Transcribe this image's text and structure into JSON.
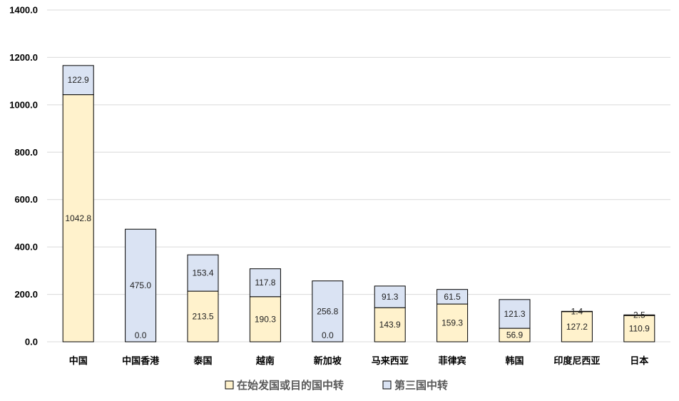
{
  "chart_data": {
    "type": "bar",
    "stacked": true,
    "categories": [
      "中国",
      "中国香港",
      "泰国",
      "越南",
      "新加坡",
      "马来西亚",
      "菲律宾",
      "韩国",
      "印度尼西亚",
      "日本"
    ],
    "series": [
      {
        "name": "在始发国或目的国中转",
        "color": "#fff2cc",
        "values": [
          1042.8,
          0.0,
          213.5,
          190.3,
          0.0,
          143.9,
          159.3,
          56.9,
          127.2,
          110.9
        ],
        "labels": [
          "1042.8",
          "0.0",
          "213.5",
          "190.3",
          "0.0",
          "143.9",
          "159.3",
          "56.9",
          "127.2",
          "110.9"
        ]
      },
      {
        "name": "第三国中转",
        "color": "#dae3f3",
        "values": [
          122.9,
          475.0,
          153.4,
          117.8,
          256.8,
          91.3,
          61.5,
          121.3,
          1.4,
          2.5
        ],
        "labels": [
          "122.9",
          "475.0",
          "153.4",
          "117.8",
          "256.8",
          "91.3",
          "61.5",
          "121.3",
          "1.4",
          "2.5"
        ]
      }
    ],
    "yticks": [
      "0.0",
      "200.0",
      "400.0",
      "600.0",
      "800.0",
      "1000.0",
      "1200.0",
      "1400.0"
    ],
    "ylim": [
      0,
      1400
    ],
    "grid": true,
    "legend_position": "bottom"
  }
}
